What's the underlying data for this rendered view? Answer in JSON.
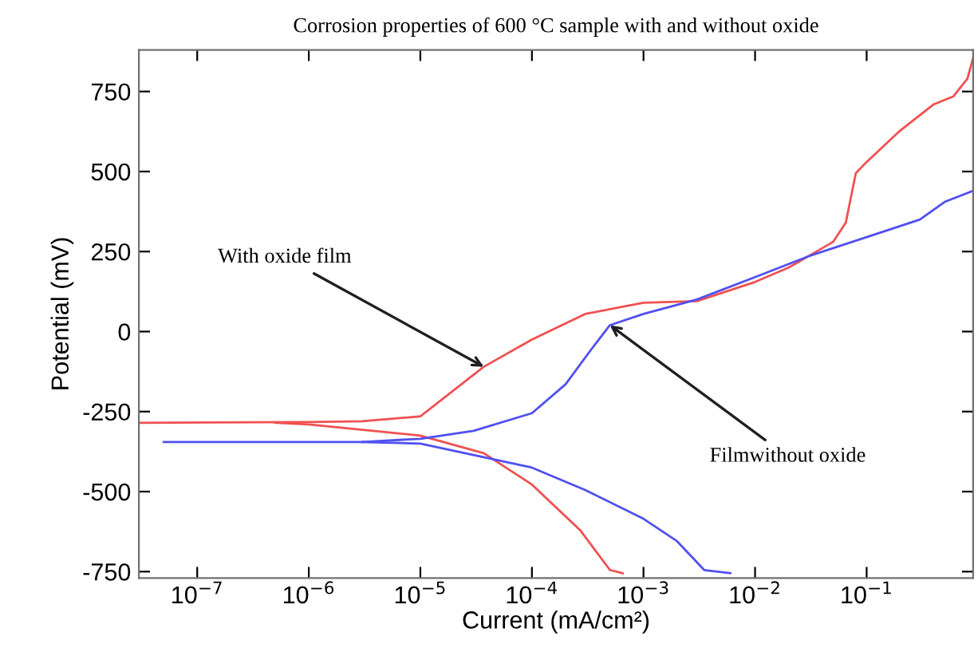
{
  "chart_data": {
    "type": "line",
    "title": "Corrosion properties of 600 °C sample with and without oxide",
    "xlabel": "Current (mA/cm²)",
    "ylabel": "Potential (mV)",
    "log": "x",
    "series": [
      {
        "color": "#f05050",
        "x": [
          3e-08,
          1e-06,
          3e-06,
          1e-05,
          3.7e-05,
          0.0001,
          0.0003,
          0.001,
          0.003,
          0.01,
          0.02,
          0.05,
          0.065,
          0.08,
          0.1,
          0.2,
          0.4,
          0.6,
          0.8,
          0.9
        ],
        "values": [
          -285,
          -283,
          -280,
          -265,
          -110,
          -25,
          55,
          90,
          95,
          155,
          200,
          280,
          340,
          495,
          530,
          628,
          710,
          735,
          790,
          855
        ]
      },
      {
        "color": "#f05050",
        "x": [
          5e-07,
          1e-06,
          1e-05,
          3.7e-05,
          0.0001,
          0.00027,
          0.0005,
          0.00065
        ],
        "values": [
          -285,
          -290,
          -325,
          -380,
          -478,
          -620,
          -745,
          -755
        ]
      },
      {
        "color": "#5050f0",
        "x": [
          5e-08,
          1e-06,
          3e-06,
          1e-05,
          3e-05,
          0.0001,
          0.0002,
          0.00035,
          0.0005,
          0.001,
          0.003,
          0.01,
          0.03,
          0.1,
          0.3,
          0.5,
          0.9
        ],
        "values": [
          -345,
          -345,
          -345,
          -335,
          -310,
          -255,
          -165,
          -50,
          20,
          55,
          100,
          170,
          235,
          295,
          350,
          405,
          440
        ]
      },
      {
        "color": "#5050f0",
        "x": [
          3e-06,
          1e-05,
          0.0001,
          0.0003,
          0.001,
          0.002,
          0.0035,
          0.006
        ],
        "values": [
          -345,
          -350,
          -425,
          -495,
          -585,
          -655,
          -745,
          -755
        ]
      }
    ],
    "xlim": [
      3e-08,
      0.9
    ],
    "ylim": [
      -770,
      880
    ],
    "xticks": [
      {
        "value": 1e-07,
        "label": "10$^{−7}$"
      },
      {
        "value": 1e-06,
        "label": "10$^{−6}$"
      },
      {
        "value": 1e-05,
        "label": "10$^{−5}$"
      },
      {
        "value": 0.0001,
        "label": "10$^{−4}$"
      },
      {
        "value": 0.001,
        "label": "10$^{−3}$"
      },
      {
        "value": 0.01,
        "label": "10$^{−2}$"
      },
      {
        "value": 0.1,
        "label": "10$^{−1}$"
      }
    ],
    "yticks": [
      -750,
      -500,
      -250,
      0,
      250,
      500,
      750
    ],
    "annotations": [
      {
        "text": "With oxide film",
        "x": 3.7e-05,
        "y": -110
      },
      {
        "text": "Filmwithout oxide",
        "x": 0.0005,
        "y": 20
      }
    ],
    "grid": false,
    "legend": false,
    "marker": "none",
    "line_style": "solid"
  }
}
